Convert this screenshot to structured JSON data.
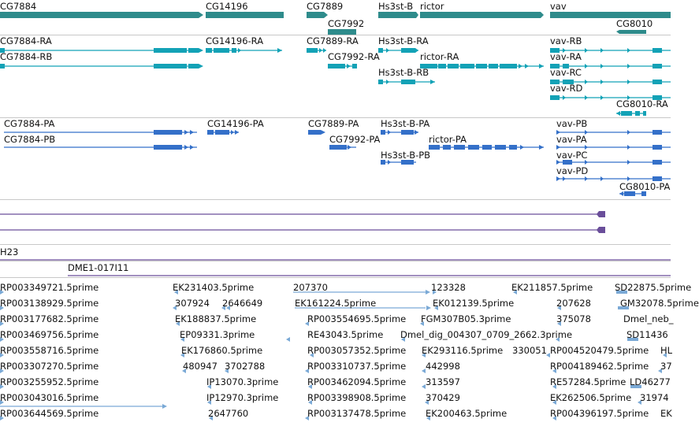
{
  "colors": {
    "gene": "#2e8b8b",
    "gene_outline": "#1f6f6f",
    "transcript": "#13a2b6",
    "cds": "#3470c9",
    "chain": "#6a4e9a",
    "est": "#7aa9d6",
    "divider": "#c8c8c8"
  },
  "gene_track": {
    "genes": [
      {
        "name": "CG7884",
        "strand": "+"
      },
      {
        "name": "CG14196",
        "strand": "+"
      },
      {
        "name": "CG7889",
        "strand": "+"
      },
      {
        "name": "CG7992",
        "strand": "+"
      },
      {
        "name": "Hs3st-B",
        "strand": "+"
      },
      {
        "name": "rictor",
        "strand": "+"
      },
      {
        "name": "vav",
        "strand": "+"
      },
      {
        "name": "CG8010",
        "strand": "-"
      }
    ]
  },
  "transcript_track": {
    "transcripts": [
      "CG7884-RA",
      "CG7884-RB",
      "CG14196-RA",
      "CG7889-RA",
      "CG7992-RA",
      "Hs3st-B-RA",
      "Hs3st-B-RB",
      "rictor-RA",
      "vav-RB",
      "vav-RA",
      "vav-RC",
      "vav-RD",
      "CG8010-RA"
    ]
  },
  "cds_track": {
    "proteins": [
      "CG7884-PA",
      "CG7884-PB",
      "CG14196-PA",
      "CG7889-PA",
      "CG7992-PA",
      "Hs3st-B-PA",
      "Hs3st-B-PB",
      "rictor-PA",
      "vav-PB",
      "vav-PA",
      "vav-PC",
      "vav-PD",
      "CG8010-PA"
    ]
  },
  "chain_track": {
    "label": "H23"
  },
  "bac_track": {
    "label": "DME1-017I11"
  },
  "est_track": {
    "rows": [
      [
        "RP003349721.5prime",
        "EK231403.5prime",
        "207370",
        "123328",
        "EK211857.5prime",
        "SD22875.5prime"
      ],
      [
        "RP003138929.5prime",
        "307924",
        "2646649",
        "EK161224.5prime",
        "EK012139.5prime",
        "207628",
        "GM32078.5prime"
      ],
      [
        "RP003177682.5prime",
        "EK188837.5prime",
        "RP003554695.5prime",
        "FGM307B05.3prime",
        "375078",
        "Dmel_neb_"
      ],
      [
        "RP003469756.5prime",
        "EP09331.3prime",
        "RE43043.5prime",
        "Dmel_dig_004307_0709_2662.3prime",
        "SD11436"
      ],
      [
        "RP003558716.5prime",
        "EK176860.5prime",
        "RP003057352.5prime",
        "EK293116.5prime",
        "330051",
        "RP004520479.5prime",
        "HL"
      ],
      [
        "RP003307270.5prime",
        "480947",
        "3702788",
        "RP003310737.5prime",
        "442998",
        "RP004189462.5prime",
        "37"
      ],
      [
        "RP003255952.5prime",
        "IP13070.3prime",
        "RP003462094.5prime",
        "313597",
        "RE57284.5prime",
        "LD46277"
      ],
      [
        "RP003043016.5prime",
        "IP12970.3prime",
        "RP003398908.5prime",
        "370429",
        "EK262506.5prime",
        "31974"
      ],
      [
        "RP003644569.5prime",
        "2647760",
        "RP003137478.5prime",
        "EK200463.5prime",
        "RP004396197.5prime",
        "EK"
      ]
    ]
  }
}
